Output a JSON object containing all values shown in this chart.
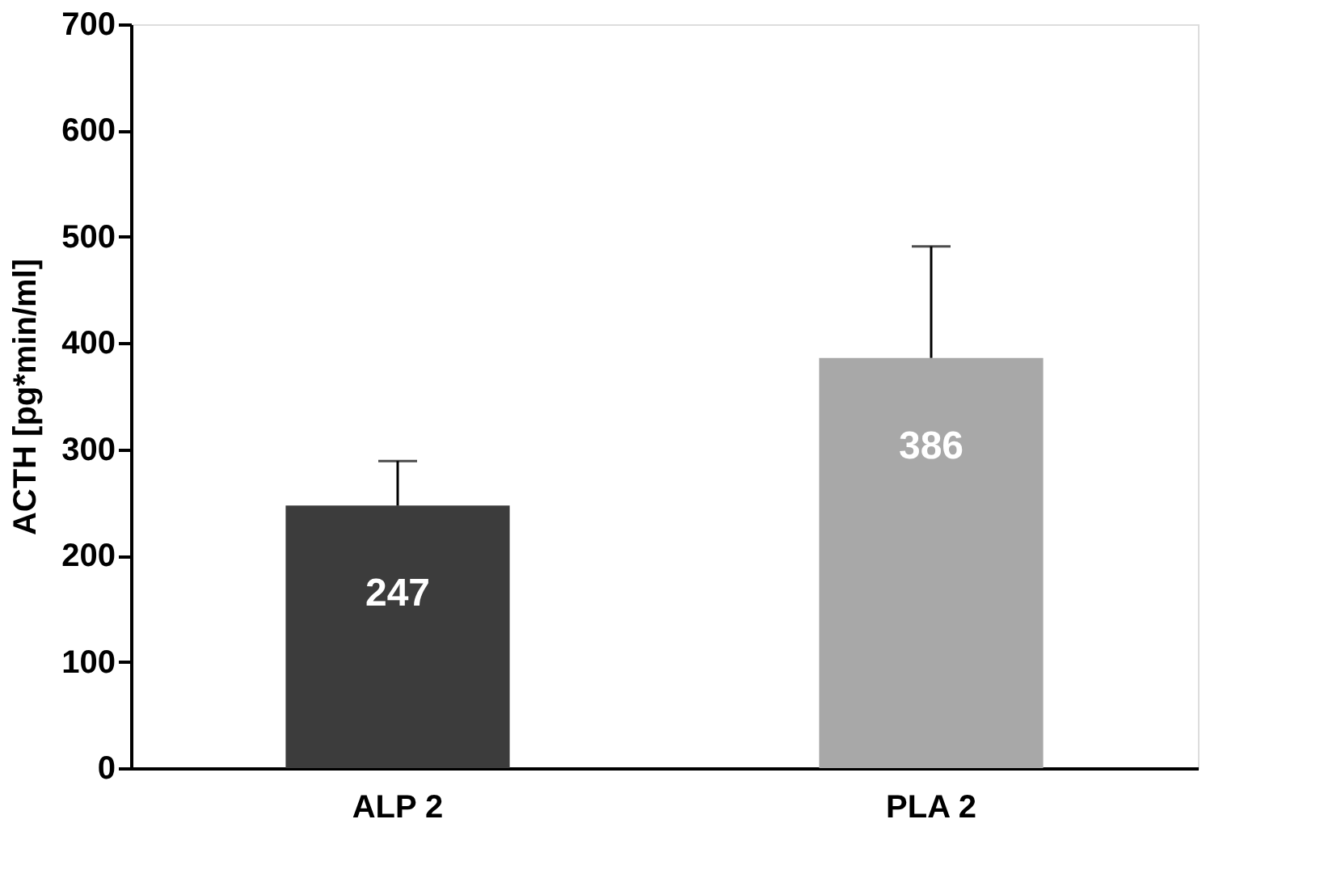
{
  "chart_data": {
    "type": "bar",
    "ylabel": "ACTH [pg*min/ml]",
    "categories": [
      "ALP 2",
      "PLA 2"
    ],
    "values": [
      247,
      386
    ],
    "colors": [
      "#3c3c3c",
      "#a8a8a8"
    ],
    "errors": [
      [
        247,
        289
      ],
      [
        386,
        491
      ]
    ],
    "data_labels": true,
    "ylim": [
      0,
      700
    ],
    "yticks": [
      0,
      100,
      200,
      300,
      400,
      500,
      600,
      700
    ],
    "grid": false
  }
}
